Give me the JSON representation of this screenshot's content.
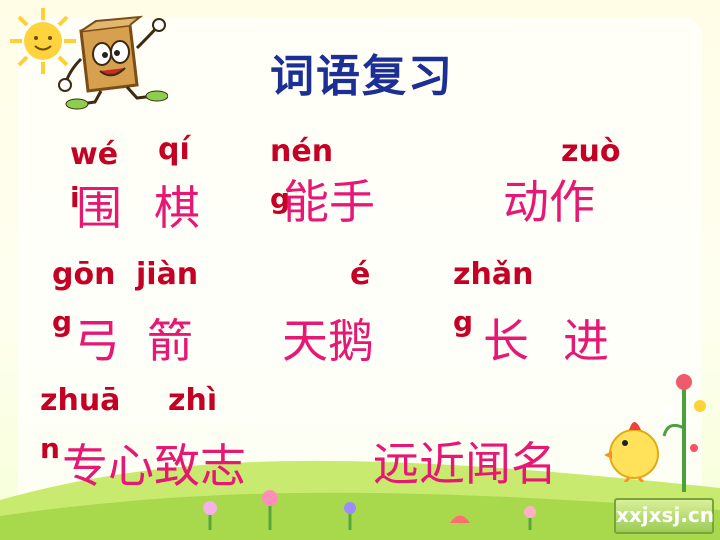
{
  "title": "词语复习",
  "rows": [
    {
      "pinyin": [
        "wé",
        "qí",
        "nén",
        "zuò"
      ],
      "hanzi": [
        "围",
        "棋",
        "能手",
        "动作"
      ],
      "tails": [
        "i",
        "g"
      ]
    },
    {
      "pinyin": [
        "gōn",
        "jiàn",
        "é",
        "zhǎn"
      ],
      "hanzi": [
        "弓",
        "箭",
        "天鹅",
        "长",
        "进"
      ],
      "tails": [
        "g",
        "g"
      ]
    },
    {
      "pinyin": [
        "zhuā",
        "zhì"
      ],
      "hanzi": [
        "专心致志",
        "远近闻名"
      ],
      "tails": [
        "n"
      ]
    }
  ],
  "watermark": "xxjxsj.cn",
  "colors": {
    "title": "#1b2f94",
    "pinyin": "#c40025",
    "hanzi": "#e71874"
  },
  "icons": [
    "sun-icon",
    "paper-bag-mascot-icon",
    "chick-icon",
    "flower-icon"
  ]
}
